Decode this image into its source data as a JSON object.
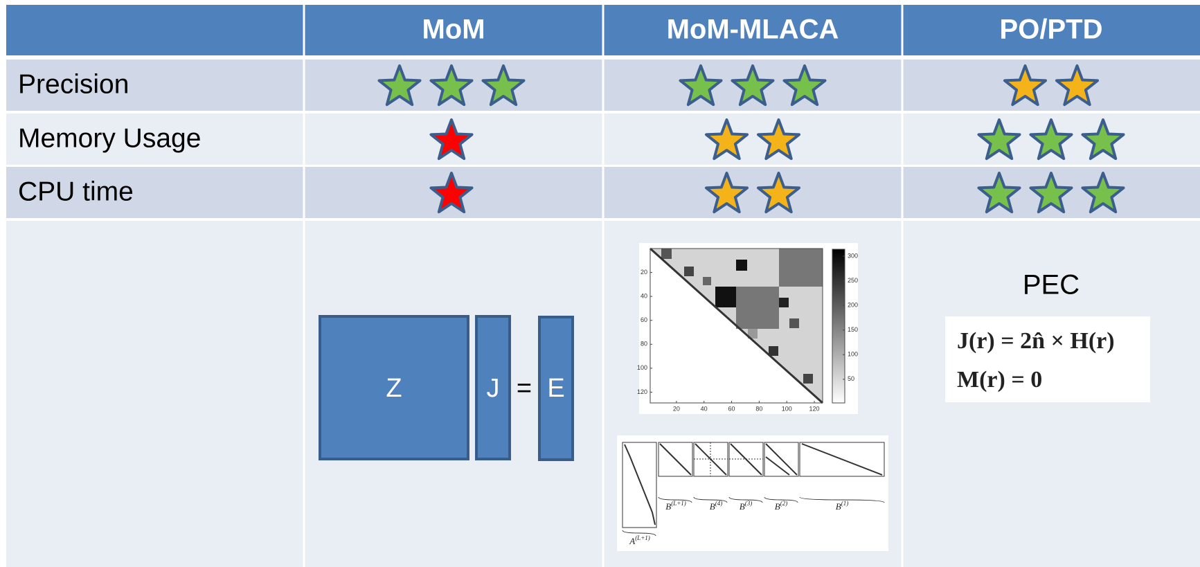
{
  "table": {
    "columns": [
      "MoM",
      "MoM-MLACA",
      "PO/PTD"
    ],
    "rows": [
      {
        "label": "Precision",
        "ratings": [
          {
            "stars": 3,
            "color": "#77c04b"
          },
          {
            "stars": 3,
            "color": "#77c04b"
          },
          {
            "stars": 2,
            "color": "#f5b31a"
          }
        ]
      },
      {
        "label": "Memory Usage",
        "ratings": [
          {
            "stars": 1,
            "color": "#ff0000"
          },
          {
            "stars": 2,
            "color": "#f5b31a"
          },
          {
            "stars": 3,
            "color": "#77c04b"
          }
        ]
      },
      {
        "label": "CPU time",
        "ratings": [
          {
            "stars": 1,
            "color": "#ff0000"
          },
          {
            "stars": 2,
            "color": "#f5b31a"
          },
          {
            "stars": 3,
            "color": "#77c04b"
          }
        ]
      }
    ]
  },
  "illustrations": {
    "mom": {
      "labels": [
        "Z",
        "J",
        "=",
        "E"
      ]
    },
    "mlaca": {
      "heatmap": {
        "xlim": [
          1,
          126
        ],
        "ylim": [
          0,
          129
        ],
        "xticks": [
          20,
          40,
          60,
          80,
          100,
          120
        ],
        "yticks": [
          20,
          40,
          60,
          80,
          100,
          120
        ],
        "clim": [
          2,
          314
        ],
        "colorbar_ticks": [
          50,
          100,
          150,
          200,
          250,
          300
        ]
      },
      "block_labels": [
        {
          "base": "B",
          "sup": "(L+1)"
        },
        {
          "base": "B",
          "sup": "(4)"
        },
        {
          "base": "B",
          "sup": "(3)"
        },
        {
          "base": "B",
          "sup": "(2)"
        },
        {
          "base": "B",
          "sup": "(1)"
        }
      ],
      "a_label": {
        "base": "A",
        "sup": "(L+1)"
      }
    },
    "po": {
      "title": "PEC",
      "equations": [
        "J(r) = 2n̂ × H(r)",
        "M(r) = 0"
      ]
    }
  }
}
